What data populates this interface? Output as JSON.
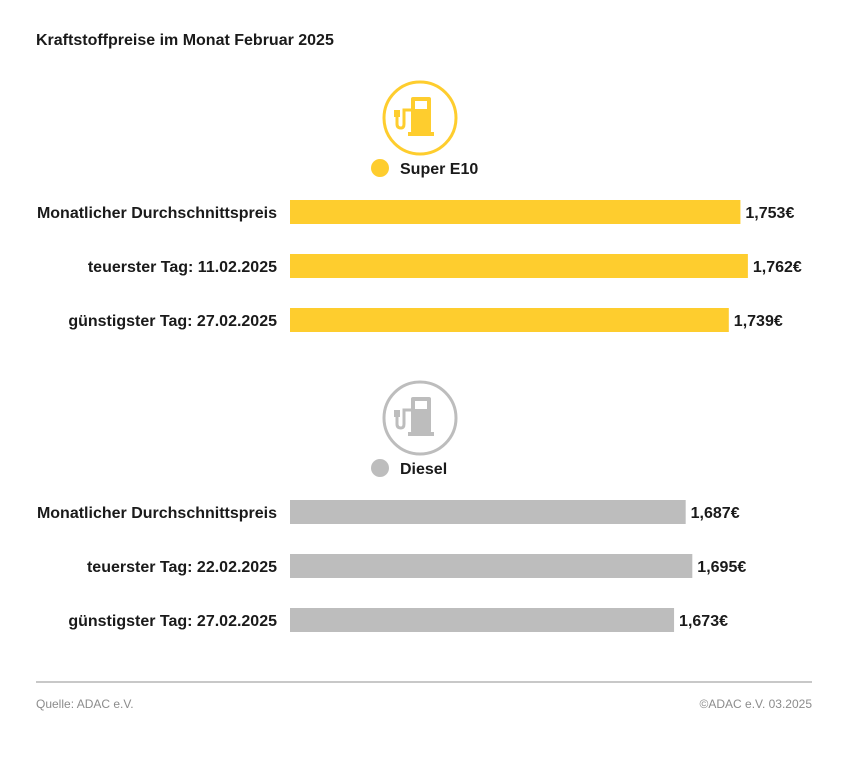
{
  "title": "Kraftstoffpreise im Monat Februar 2025",
  "colors": {
    "super_e10": "#fecd2e",
    "diesel": "#bdbdbd"
  },
  "chart_data": [
    {
      "type": "bar",
      "orientation": "horizontal",
      "icon": "fuel-pump-icon",
      "legend": "Super E10",
      "categories": [
        "Monatlicher Durchschnittspreis",
        "teuerster Tag: 11.02.2025",
        "günstigster Tag: 27.02.2025"
      ],
      "values": [
        1.753,
        1.762,
        1.739
      ],
      "value_labels": [
        "1,753€",
        "1,762€",
        "1,739€"
      ],
      "color": "#fecd2e"
    },
    {
      "type": "bar",
      "orientation": "horizontal",
      "icon": "fuel-pump-icon",
      "legend": "Diesel",
      "categories": [
        "Monatlicher Durchschnittspreis",
        "teuerster Tag: 22.02.2025",
        "günstigster Tag: 27.02.2025"
      ],
      "values": [
        1.687,
        1.695,
        1.673
      ],
      "value_labels": [
        "1,687€",
        "1,695€",
        "1,673€"
      ],
      "color": "#bdbdbd"
    }
  ],
  "footer": {
    "source": "Quelle: ADAC e.V.",
    "copyright": "©ADAC e.V. 03.2025"
  }
}
